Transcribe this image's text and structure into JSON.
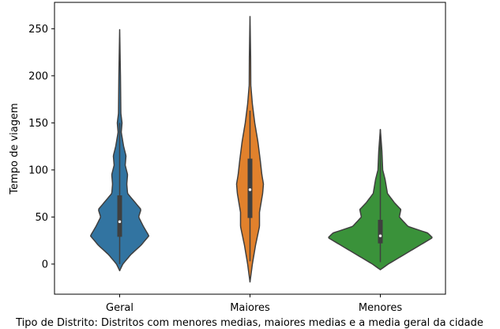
{
  "chart_data": {
    "type": "violin",
    "title": "",
    "xlabel": "Tipo de Distrito: Distritos com menores medias, maiores medias e a media geral da cidade",
    "ylabel": "Tempo de viagem",
    "ylim": [
      -32,
      278
    ],
    "yticks": [
      0,
      50,
      100,
      150,
      200,
      250
    ],
    "grid": false,
    "categories": [
      "Geral",
      "Maiores",
      "Menores"
    ],
    "colors": [
      "#3274a1",
      "#e1812c",
      "#3a923a"
    ],
    "series": [
      {
        "category": "Geral",
        "min": -7,
        "q1": 29,
        "median": 45,
        "q3": 73,
        "max": 249,
        "whisker_low": 0,
        "whisker_high": 150,
        "density": [
          [
            -7,
            0
          ],
          [
            0,
            4
          ],
          [
            10,
            14
          ],
          [
            20,
            27
          ],
          [
            30,
            37
          ],
          [
            40,
            30
          ],
          [
            50,
            24
          ],
          [
            58,
            27
          ],
          [
            65,
            20
          ],
          [
            75,
            10
          ],
          [
            85,
            9
          ],
          [
            95,
            10
          ],
          [
            105,
            7
          ],
          [
            115,
            8
          ],
          [
            125,
            5
          ],
          [
            140,
            2
          ],
          [
            150,
            3
          ],
          [
            160,
            1.5
          ],
          [
            200,
            1
          ],
          [
            249,
            0
          ]
        ]
      },
      {
        "category": "Maiores",
        "min": -19,
        "q1": 49,
        "median": 79,
        "q3": 112,
        "max": 263,
        "whisker_low": 3,
        "whisker_high": 163,
        "density": [
          [
            -19,
            0
          ],
          [
            0,
            3
          ],
          [
            20,
            7
          ],
          [
            40,
            12
          ],
          [
            55,
            12
          ],
          [
            65,
            14
          ],
          [
            75,
            16
          ],
          [
            85,
            17
          ],
          [
            95,
            15
          ],
          [
            110,
            13
          ],
          [
            130,
            10
          ],
          [
            150,
            6
          ],
          [
            170,
            3
          ],
          [
            190,
            1
          ],
          [
            220,
            0.8
          ],
          [
            263,
            0
          ]
        ]
      },
      {
        "category": "Menores",
        "min": -6,
        "q1": 22,
        "median": 30,
        "q3": 47,
        "max": 143,
        "whisker_low": 2,
        "whisker_high": 143,
        "density": [
          [
            -6,
            0
          ],
          [
            0,
            10
          ],
          [
            10,
            30
          ],
          [
            20,
            50
          ],
          [
            28,
            66
          ],
          [
            33,
            60
          ],
          [
            40,
            35
          ],
          [
            50,
            24
          ],
          [
            58,
            26
          ],
          [
            65,
            18
          ],
          [
            75,
            9
          ],
          [
            90,
            6
          ],
          [
            100,
            3
          ],
          [
            120,
            2
          ],
          [
            143,
            0
          ]
        ]
      }
    ]
  }
}
